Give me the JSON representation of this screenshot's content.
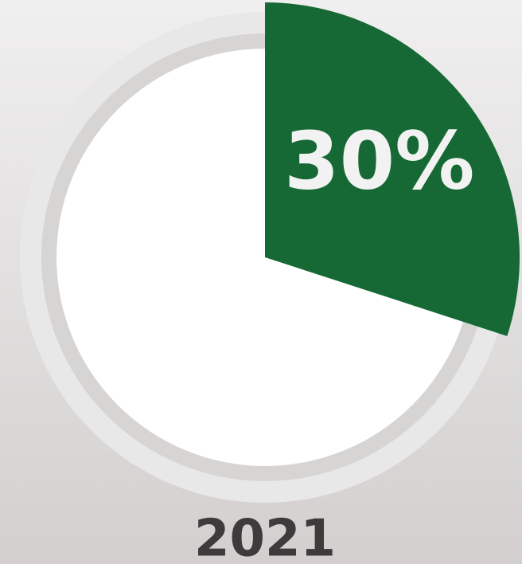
{
  "chart_data": {
    "type": "pie",
    "categories": [
      "2021"
    ],
    "values": [
      30
    ],
    "value_labels": [
      "30%"
    ],
    "color": "#166934"
  }
}
